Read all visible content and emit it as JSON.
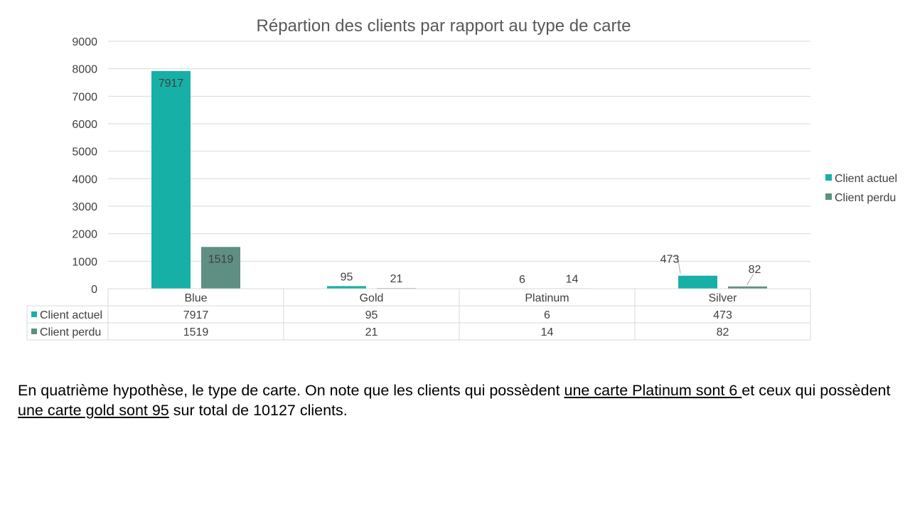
{
  "colors": {
    "series_actuel": "#17B0A7",
    "series_perdu": "#5F8E83",
    "grid": "#D9D9D9",
    "text": "#404040",
    "title": "#595959"
  },
  "chart_data": {
    "type": "bar",
    "title": "Répartion des clients par rapport au type de carte",
    "categories": [
      "Blue",
      "Gold",
      "Platinum",
      "Silver"
    ],
    "series": [
      {
        "name": "Client actuel",
        "values": [
          7917,
          95,
          6,
          473
        ]
      },
      {
        "name": "Client perdu",
        "values": [
          1519,
          21,
          14,
          82
        ]
      }
    ],
    "ylim": [
      0,
      9000
    ],
    "yticks": [
      0,
      1000,
      2000,
      3000,
      4000,
      5000,
      6000,
      7000,
      8000,
      9000
    ],
    "grid": true,
    "legend_position": "right",
    "data_table": true
  },
  "caption": {
    "part1": "En quatrième hypothèse, le type de carte. On note que les clients qui possèdent ",
    "underline1": "une carte Platinum sont 6 ",
    "part2": "et ceux qui possèdent ",
    "underline2": "une carte gold sont 95",
    "part3": "  sur total de 10127 clients."
  }
}
